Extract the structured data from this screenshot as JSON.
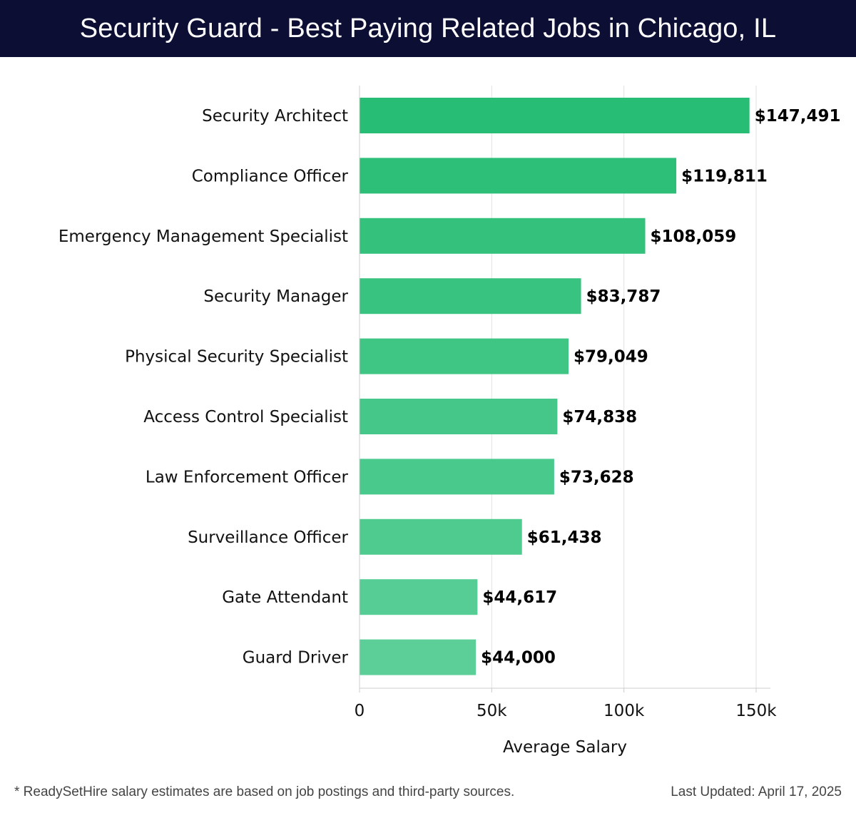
{
  "header": {
    "title": "Security Guard - Best Paying Related Jobs in Chicago, IL"
  },
  "footer": {
    "note": "* ReadySetHire salary estimates are based on job postings and third-party sources.",
    "updated": "Last Updated: April 17, 2025"
  },
  "colors": {
    "header_bg": "#0c0f33",
    "bar_top": "#27bd74",
    "bar_bottom": "#5ccf98",
    "grid": "#e2e2e2",
    "axis": "#cccccc"
  },
  "chart_data": {
    "type": "bar",
    "orientation": "horizontal",
    "title": "Security Guard - Best Paying Related Jobs in Chicago, IL",
    "xlabel": "Average Salary",
    "ylabel": "",
    "xlim": [
      0,
      155000
    ],
    "grid": "vertical",
    "legend": "none",
    "ticks": [
      {
        "value": 0,
        "label": "0"
      },
      {
        "value": 50000,
        "label": "50k"
      },
      {
        "value": 100000,
        "label": "100k"
      },
      {
        "value": 150000,
        "label": "150k"
      }
    ],
    "categories": [
      "Security Architect",
      "Compliance Officer",
      "Emergency Management Specialist",
      "Security Manager",
      "Physical Security Specialist",
      "Access Control Specialist",
      "Law Enforcement Officer",
      "Surveillance Officer",
      "Gate Attendant",
      "Guard Driver"
    ],
    "values": [
      147491,
      119811,
      108059,
      83787,
      79049,
      74838,
      73628,
      61438,
      44617,
      44000
    ],
    "value_labels": [
      "$147,491",
      "$119,811",
      "$108,059",
      "$83,787",
      "$79,049",
      "$74,838",
      "$73,628",
      "$61,438",
      "$44,617",
      "$44,000"
    ]
  }
}
